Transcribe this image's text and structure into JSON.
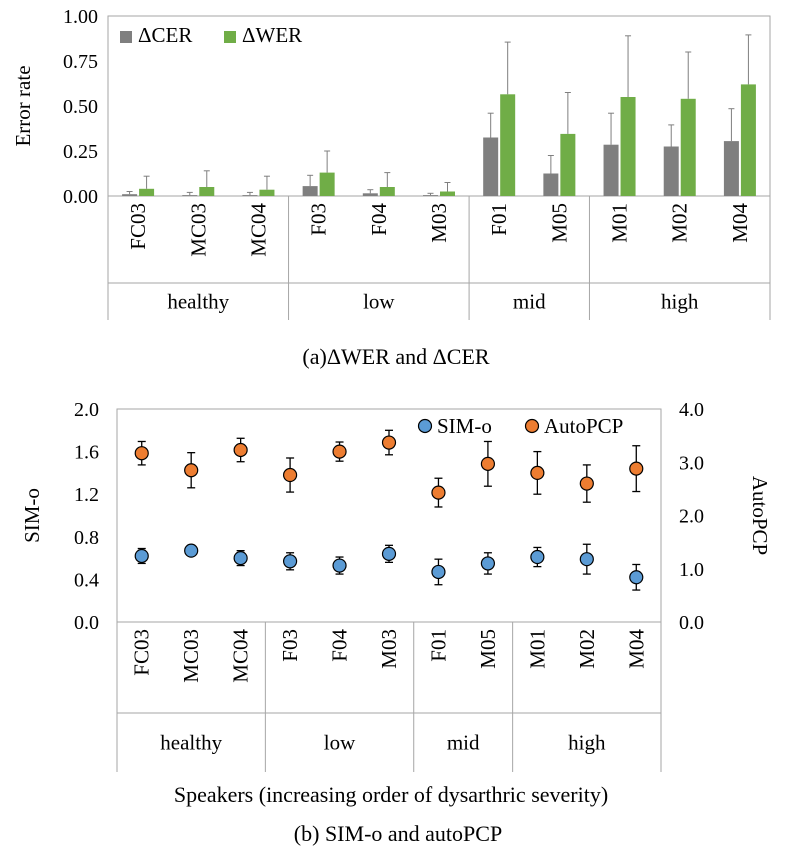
{
  "figure": {
    "caption_a": "(a)ΔWER and ΔCER",
    "caption_b": "(b) SIM-o and autoPCP",
    "xlabel_b": "Speakers (increasing order of dysarthric severity)"
  },
  "chart_data": [
    {
      "type": "bar",
      "title": "",
      "categories": [
        "FC03",
        "MC03",
        "MC04",
        "F03",
        "F04",
        "M03",
        "F01",
        "M05",
        "M01",
        "M02",
        "M04"
      ],
      "groups": [
        {
          "label": "healthy",
          "count": 3
        },
        {
          "label": "low",
          "count": 3
        },
        {
          "label": "mid",
          "count": 2
        },
        {
          "label": "high",
          "count": 3
        }
      ],
      "xlabel": "",
      "ylabel": "Error rate",
      "ylim": [
        0,
        1.0
      ],
      "yticks": [
        "0.00",
        "0.25",
        "0.50",
        "0.75",
        "1.00"
      ],
      "legend": "top-left",
      "grid": false,
      "series": [
        {
          "name": "ΔCER",
          "color": "#7f7f7f",
          "values": [
            0.01,
            0.005,
            0.005,
            0.055,
            0.015,
            0.005,
            0.325,
            0.125,
            0.285,
            0.275,
            0.305
          ],
          "errors": [
            0.015,
            0.015,
            0.015,
            0.06,
            0.02,
            0.01,
            0.135,
            0.1,
            0.175,
            0.12,
            0.18
          ]
        },
        {
          "name": "ΔWER",
          "color": "#70ad47",
          "values": [
            0.04,
            0.05,
            0.035,
            0.13,
            0.05,
            0.025,
            0.565,
            0.345,
            0.55,
            0.54,
            0.62
          ],
          "errors": [
            0.07,
            0.09,
            0.075,
            0.12,
            0.08,
            0.05,
            0.29,
            0.23,
            0.34,
            0.26,
            0.275
          ]
        }
      ]
    },
    {
      "type": "scatter",
      "title": "",
      "categories": [
        "FC03",
        "MC03",
        "MC04",
        "F03",
        "F04",
        "M03",
        "F01",
        "M05",
        "M01",
        "M02",
        "M04"
      ],
      "groups": [
        {
          "label": "healthy",
          "count": 3
        },
        {
          "label": "low",
          "count": 3
        },
        {
          "label": "mid",
          "count": 2
        },
        {
          "label": "high",
          "count": 3
        }
      ],
      "xlabel": "Speakers (increasing order of dysarthric severity)",
      "ylabel": "SIM-o",
      "ylabel_right": "AutoPCP",
      "ylim": [
        0.0,
        2.0
      ],
      "ylim_right": [
        0.0,
        4.0
      ],
      "yticks": [
        "0.0",
        "0.4",
        "0.8",
        "1.2",
        "1.6",
        "2.0"
      ],
      "yticks_right": [
        "0.0",
        "1.0",
        "2.0",
        "3.0",
        "4.0"
      ],
      "legend": "top-right",
      "grid": false,
      "series": [
        {
          "name": "SIM-o",
          "axis": "left",
          "color": "#5b9bd5",
          "values": [
            0.62,
            0.67,
            0.6,
            0.57,
            0.53,
            0.64,
            0.47,
            0.55,
            0.61,
            0.59,
            0.42
          ],
          "errors": [
            0.07,
            0.04,
            0.07,
            0.08,
            0.08,
            0.08,
            0.12,
            0.1,
            0.09,
            0.14,
            0.12
          ]
        },
        {
          "name": "AutoPCP",
          "axis": "right",
          "color": "#ed7d31",
          "values": [
            3.17,
            2.85,
            3.23,
            2.76,
            3.2,
            3.37,
            2.43,
            2.97,
            2.8,
            2.6,
            2.88
          ],
          "errors": [
            0.22,
            0.33,
            0.22,
            0.32,
            0.18,
            0.23,
            0.27,
            0.42,
            0.4,
            0.35,
            0.43
          ]
        }
      ]
    }
  ]
}
